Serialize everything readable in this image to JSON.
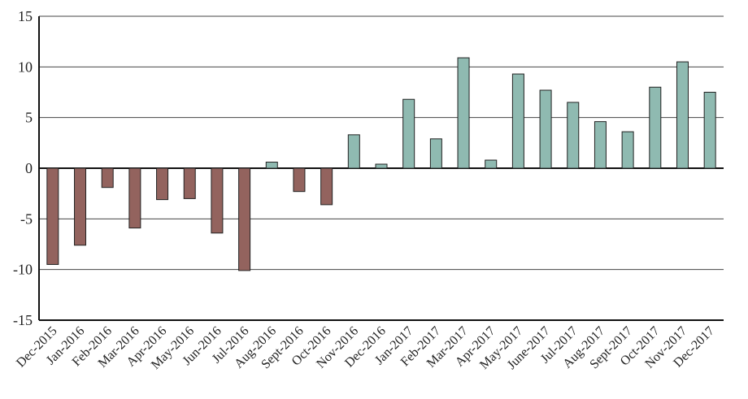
{
  "chart_data": {
    "type": "bar",
    "title": "",
    "xlabel": "",
    "ylabel": "",
    "ylim": [
      -15,
      15
    ],
    "yticks": [
      15,
      10,
      5,
      0,
      -5,
      -10,
      -15
    ],
    "grid": true,
    "legend": "none",
    "colors": {
      "negative": "#93635e",
      "positive": "#8fbab1"
    },
    "categories": [
      "Dec-2015",
      "Jan-2016",
      "Feb-2016",
      "Mar-2016",
      "Apr-2016",
      "May-2016",
      "Jun-2016",
      "Jul-2016",
      "Aug-2016",
      "Sept-2016",
      "Oct-2016",
      "Nov-2016",
      "Dec-2016",
      "Jan-2017",
      "Feb-2017",
      "Mar-2017",
      "Apr-2017",
      "May-2017",
      "June-2017",
      "Jul-2017",
      "Aug-2017",
      "Sept-2017",
      "Oct-2017",
      "Nov-2017",
      "Dec-2017"
    ],
    "values": [
      -9.5,
      -7.6,
      -1.9,
      -5.9,
      -3.1,
      -3.0,
      -6.4,
      -10.1,
      0.6,
      -2.3,
      -3.6,
      3.3,
      0.4,
      6.8,
      2.9,
      10.9,
      0.8,
      9.3,
      7.7,
      6.5,
      4.6,
      3.6,
      8.0,
      10.5,
      7.5
    ]
  }
}
